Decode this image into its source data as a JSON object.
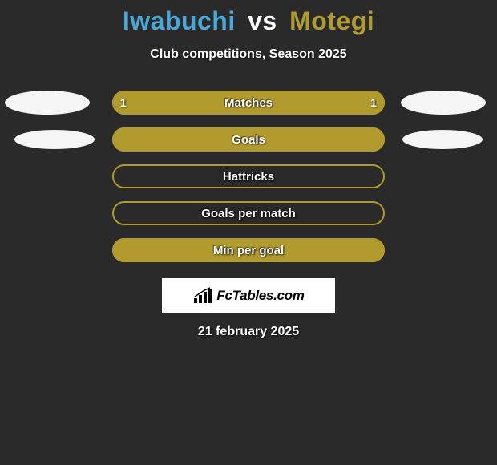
{
  "title": {
    "player1": "Iwabuchi",
    "vs": "vs",
    "player2": "Motegi",
    "player1_color": "#4aa8d8",
    "vs_color": "#ffffff",
    "player2_color": "#b29b2e"
  },
  "subtitle": "Club competitions, Season 2025",
  "bar_colors": {
    "fill": "#b29b2e",
    "border": "#b29b2e",
    "bg": "transparent"
  },
  "rows": [
    {
      "label": "Matches",
      "left_value": "1",
      "right_value": "1",
      "fill_pct": 100,
      "show_left_ellipse": true,
      "show_right_ellipse": true,
      "ellipse_row_class": ""
    },
    {
      "label": "Goals",
      "left_value": "",
      "right_value": "",
      "fill_pct": 100,
      "show_left_ellipse": true,
      "show_right_ellipse": true,
      "ellipse_row_class": "small"
    },
    {
      "label": "Hattricks",
      "left_value": "",
      "right_value": "",
      "fill_pct": 0,
      "show_left_ellipse": false,
      "show_right_ellipse": false,
      "ellipse_row_class": ""
    },
    {
      "label": "Goals per match",
      "left_value": "",
      "right_value": "",
      "fill_pct": 0,
      "show_left_ellipse": false,
      "show_right_ellipse": false,
      "ellipse_row_class": ""
    },
    {
      "label": "Min per goal",
      "left_value": "",
      "right_value": "",
      "fill_pct": 100,
      "show_left_ellipse": false,
      "show_right_ellipse": false,
      "ellipse_row_class": ""
    }
  ],
  "ellipse_color": "#f5f5f5",
  "brand": {
    "text": "FcTables.com"
  },
  "date": "21 february 2025",
  "background": "#2a2a2a"
}
